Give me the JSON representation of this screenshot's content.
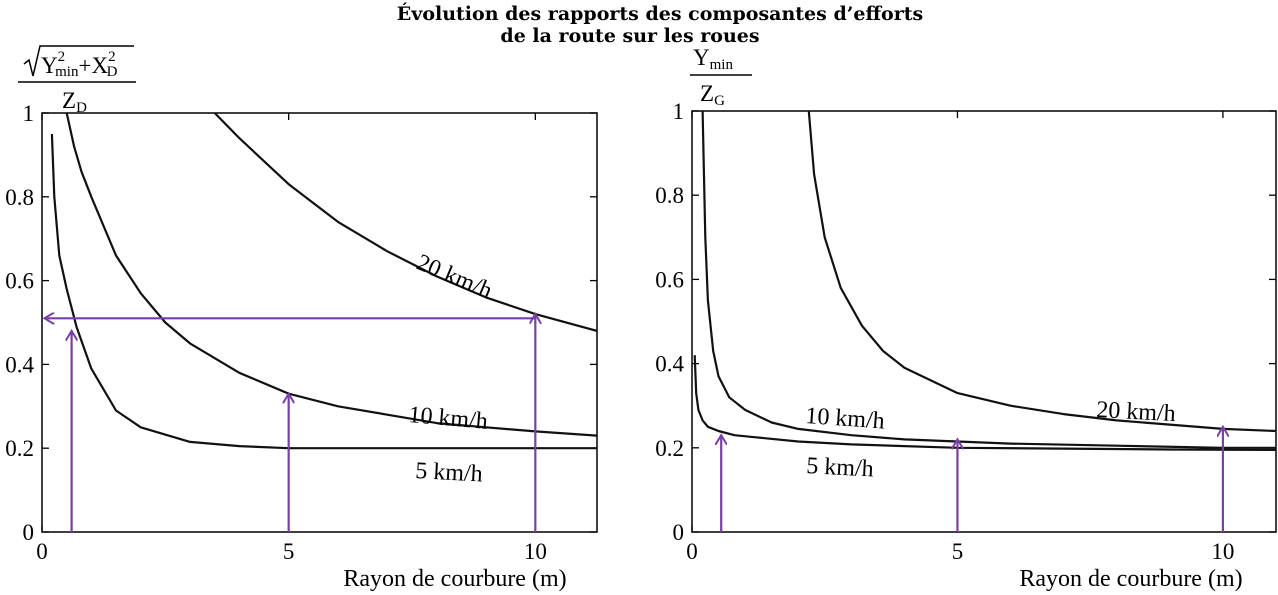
{
  "title_line1": "Évolution des rapports des composantes d’efforts",
  "title_line2": "de la route sur les roues",
  "colors": {
    "curve": "#111111",
    "arrow": "#7a3fa6",
    "axis": "#000000"
  },
  "chart_data": [
    {
      "type": "line",
      "ylabel": {
        "numerator_root": "Y",
        "numerator_root_sup": "2",
        "numerator_root_sub": "min",
        "numerator_plus": "+X",
        "numerator_second_sup": "2",
        "numerator_second_sub": "D",
        "denominator": "Z",
        "denominator_sub": "D"
      },
      "xlabel": "Rayon de courbure (m)",
      "xlim": [
        0,
        11.25
      ],
      "ylim": [
        0,
        1
      ],
      "xticks": [
        "0",
        "5",
        "10"
      ],
      "yticks": [
        "0",
        "0.2",
        "0.4",
        "0.6",
        "0.8",
        "1"
      ],
      "series": [
        {
          "name": "5 km/h",
          "x": [
            0.2,
            0.25,
            0.35,
            0.5,
            0.7,
            1.0,
            1.5,
            2.0,
            3.0,
            4.0,
            5.0,
            6.0,
            8.0,
            10.0,
            11.25
          ],
          "y": [
            0.95,
            0.8,
            0.66,
            0.58,
            0.49,
            0.39,
            0.29,
            0.25,
            0.215,
            0.205,
            0.2,
            0.2,
            0.2,
            0.2,
            0.2
          ]
        },
        {
          "name": "10 km/h",
          "x": [
            0.5,
            0.65,
            0.8,
            1.0,
            1.5,
            2.0,
            2.5,
            3.0,
            4.0,
            5.0,
            6.0,
            7.0,
            8.0,
            9.0,
            10.0,
            11.25
          ],
          "y": [
            1.0,
            0.92,
            0.86,
            0.8,
            0.66,
            0.57,
            0.5,
            0.45,
            0.38,
            0.33,
            0.3,
            0.28,
            0.26,
            0.25,
            0.24,
            0.23
          ]
        },
        {
          "name": "20 km/h",
          "x": [
            3.5,
            4.0,
            5.0,
            6.0,
            7.0,
            8.0,
            9.0,
            10.0,
            11.25
          ],
          "y": [
            1.0,
            0.94,
            0.83,
            0.74,
            0.67,
            0.61,
            0.56,
            0.52,
            0.48
          ]
        }
      ],
      "annotations": [
        {
          "type": "arrow-up",
          "x": 0.6,
          "y_from": 0,
          "y_to": 0.48
        },
        {
          "type": "arrow-up",
          "x": 5.0,
          "y_from": 0,
          "y_to": 0.33
        },
        {
          "type": "arrow-up",
          "x": 10.0,
          "y_from": 0,
          "y_to": 0.52
        },
        {
          "type": "arrow-left",
          "y": 0.51,
          "x_from": 10.0,
          "x_to": 0.05
        }
      ]
    },
    {
      "type": "line",
      "ylabel": {
        "numerator_root": "Y",
        "numerator_root_sub": "min",
        "denominator": "Z",
        "denominator_sub": "G"
      },
      "xlabel": "Rayon de courbure (m)",
      "xlim": [
        0,
        11
      ],
      "ylim": [
        0,
        1
      ],
      "xticks": [
        "0",
        "5",
        "10"
      ],
      "yticks": [
        "0",
        "0.2",
        "0.4",
        "0.6",
        "0.8",
        "1"
      ],
      "series": [
        {
          "name": "5 km/h",
          "x": [
            0.05,
            0.08,
            0.12,
            0.2,
            0.3,
            0.5,
            0.8,
            1.2,
            2.0,
            3.0,
            5.0,
            7.0,
            9.0,
            11.0
          ],
          "y": [
            0.42,
            0.33,
            0.29,
            0.265,
            0.25,
            0.24,
            0.23,
            0.225,
            0.215,
            0.208,
            0.2,
            0.198,
            0.196,
            0.195
          ]
        },
        {
          "name": "10 km/h",
          "x": [
            0.2,
            0.25,
            0.3,
            0.4,
            0.5,
            0.7,
            1.0,
            1.5,
            2.0,
            3.0,
            4.0,
            5.0,
            6.0,
            8.0,
            10.0,
            11.0
          ],
          "y": [
            1.0,
            0.7,
            0.55,
            0.43,
            0.37,
            0.32,
            0.29,
            0.26,
            0.245,
            0.23,
            0.22,
            0.215,
            0.21,
            0.205,
            0.2,
            0.2
          ]
        },
        {
          "name": "20 km/h",
          "x": [
            2.2,
            2.3,
            2.5,
            2.8,
            3.2,
            3.6,
            4.0,
            5.0,
            6.0,
            7.0,
            8.0,
            9.0,
            10.0,
            11.0
          ],
          "y": [
            1.0,
            0.85,
            0.7,
            0.58,
            0.49,
            0.43,
            0.39,
            0.33,
            0.3,
            0.28,
            0.265,
            0.255,
            0.245,
            0.24
          ]
        }
      ],
      "annotations": [
        {
          "type": "arrow-up",
          "x": 0.55,
          "y_from": 0,
          "y_to": 0.23
        },
        {
          "type": "arrow-up",
          "x": 5.0,
          "y_from": 0,
          "y_to": 0.22
        },
        {
          "type": "arrow-up",
          "x": 10.0,
          "y_from": 0,
          "y_to": 0.25
        }
      ]
    }
  ]
}
